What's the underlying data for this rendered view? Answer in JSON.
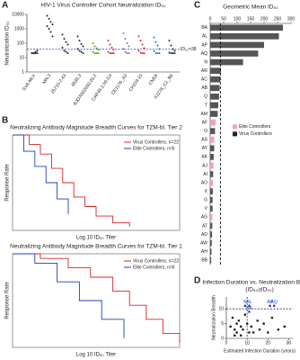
{
  "chart_data": [
    {
      "type": "dot",
      "panel": "A",
      "title": "HIV-1 Virus Controller Cohort Neutralization ID₅₀",
      "ylabel": "Neutralization ID₅₀",
      "log_y": true,
      "ylim": [
        1,
        10000
      ],
      "yticks": [
        1,
        10,
        100,
        1000,
        10000
      ],
      "categories": [
        "SVA-MLV",
        "MN.3",
        "25710-2.43",
        "6535.3",
        "BJOX002000.03.2",
        "CAP45.2.00.G3",
        "CE1176_A3",
        "CH119.10",
        "CNE8",
        "X2278_C2_B6"
      ],
      "colors": [
        "#222222",
        "#222222",
        "#222222",
        "#222222",
        "#5aa02c",
        "#d62728",
        "#9467bd",
        "#d62728",
        "#1f77b4",
        "#222222"
      ],
      "values": [
        [
          20,
          20,
          20,
          20,
          20,
          20,
          25,
          30
        ],
        [
          8000,
          5000,
          3000,
          2000,
          1500,
          1000,
          600,
          300
        ],
        [
          400,
          200,
          120,
          80,
          50,
          30,
          25,
          20
        ],
        [
          300,
          150,
          90,
          60,
          40,
          30,
          25,
          20
        ],
        [
          100,
          60,
          45,
          35,
          25,
          20,
          20,
          20
        ],
        [
          150,
          80,
          50,
          35,
          25,
          20,
          20,
          20
        ],
        [
          500,
          200,
          100,
          60,
          40,
          25,
          20,
          20
        ],
        [
          300,
          150,
          80,
          45,
          30,
          22,
          20,
          20
        ],
        [
          250,
          120,
          70,
          40,
          28,
          20,
          20,
          20
        ],
        [
          150,
          70,
          40,
          30,
          22,
          20,
          20,
          20
        ]
      ],
      "threshold": 38,
      "threshold_label": "ID₅₀=38"
    },
    {
      "type": "step",
      "panel": "B",
      "title": "Neutralizing Antibody Magnitude Breadth Curves for TZM-bl. Tier 2",
      "ylabel": "Response Rate",
      "xlabel": "Log 10 ID₅₀ Titer",
      "xlim": [
        1,
        4
      ],
      "ylim": [
        0,
        1
      ],
      "series": [
        {
          "name": "Virus Controllers, n=22",
          "color": "#d62728",
          "x": [
            1,
            1.3,
            1.5,
            1.7,
            1.9,
            2.1,
            2.3,
            2.5,
            2.8,
            3.1
          ],
          "values": [
            1,
            0.9,
            0.8,
            0.65,
            0.5,
            0.35,
            0.25,
            0.15,
            0.08,
            0.04
          ]
        },
        {
          "name": "Elite Controllers, n=6",
          "color": "#1f3fbf",
          "x": [
            1,
            1.2,
            1.4,
            1.6,
            1.8,
            2.0
          ],
          "values": [
            1,
            0.83,
            0.67,
            0.5,
            0.33,
            0.17
          ]
        }
      ]
    },
    {
      "type": "step",
      "title": "Neutralizing Antibody Magnitude Breadth Curves for TZM-bl. Tier 1",
      "ylabel": "Response Rate",
      "xlabel": "Log 10 ID₅₀ Titer",
      "xlim": [
        1,
        4
      ],
      "ylim": [
        0,
        1
      ],
      "series": [
        {
          "name": "Virus Controllers, n=22",
          "color": "#d62728",
          "x": [
            1,
            1.5,
            2,
            2.4,
            2.8,
            3.1,
            3.4,
            3.7,
            4
          ],
          "values": [
            1,
            0.95,
            0.85,
            0.75,
            0.6,
            0.45,
            0.3,
            0.15,
            0.05
          ]
        },
        {
          "name": "Elite Controllers, n=6",
          "color": "#1f3fbf",
          "x": [
            1,
            1.4,
            1.8,
            2.2,
            2.6,
            3.0
          ],
          "values": [
            1,
            0.9,
            0.7,
            0.5,
            0.3,
            0.1
          ]
        }
      ]
    },
    {
      "type": "hbar",
      "panel": "C",
      "title": "Geometric Mean ID₅₀",
      "xlim": [
        0,
        300
      ],
      "xticks": [
        0,
        50,
        100,
        150,
        200,
        250,
        300
      ],
      "categories": [
        "BA",
        "AL",
        "AP",
        "AQ",
        "N",
        "AR",
        "AC",
        "AB",
        "Q",
        "T",
        "AM",
        "AF",
        "O",
        "AS",
        "AY",
        "AK",
        "AJ",
        "AI",
        "AO",
        "X",
        "G",
        "V",
        "AG",
        "AT",
        "AD",
        "AW",
        "AH",
        "BB"
      ],
      "values": [
        270,
        255,
        200,
        178,
        122,
        40,
        38,
        35,
        33,
        30,
        28,
        20,
        18,
        15,
        15,
        13,
        12,
        11,
        10,
        10,
        9,
        9,
        8,
        8,
        7,
        6,
        5,
        4
      ],
      "colors": [
        "#555",
        "#555",
        "#555",
        "#555",
        "#555",
        "#555",
        "#555",
        "#555",
        "#555",
        "#555",
        "#555",
        "#f4a0b5",
        "#555",
        "#f4a0b5",
        "#555",
        "#555",
        "#f4a0b5",
        "#555",
        "#f4a0b5",
        "#555",
        "#555",
        "#555",
        "#f4a0b5",
        "#555",
        "#555",
        "#555",
        "#555",
        "#555"
      ],
      "reference_line": 38,
      "legend": [
        {
          "name": "Elite Controllers",
          "color": "#f4a0b5"
        },
        {
          "name": "Virus Controllers",
          "color": "#222222"
        }
      ]
    },
    {
      "type": "scatter",
      "panel": "D",
      "title": "Infection Duration vs. Neutralization Breadth",
      "subtitle": "(ID₅₀≥ID₅₀)",
      "xlabel": "Estimated Infection Duration (years)",
      "ylabel": "Neutralization Breadth",
      "xlim": [
        0,
        32
      ],
      "ylim": [
        0,
        14
      ],
      "xticks": [
        0,
        10,
        20,
        30
      ],
      "yticks": [
        0,
        5,
        10
      ],
      "reference_x": 10,
      "reference_y": 10,
      "x": [
        9,
        11,
        11,
        21,
        23,
        2,
        3,
        4,
        5,
        5,
        6,
        7,
        8,
        9,
        10,
        12,
        13,
        15,
        16,
        18,
        20,
        22,
        25,
        28,
        4,
        7,
        11
      ],
      "y": [
        11,
        11,
        9,
        11,
        11,
        4,
        7,
        3,
        5,
        2,
        6,
        4,
        3,
        8,
        5,
        4,
        2,
        6,
        3,
        5,
        2,
        7,
        3,
        4,
        1,
        1,
        2
      ],
      "point_labels": [
        "N",
        "AL",
        "BA",
        "AP",
        "AQ",
        null,
        null,
        null,
        null,
        null,
        null,
        null,
        null,
        null,
        null,
        null,
        null,
        null,
        null,
        null,
        null,
        null,
        null,
        null,
        null,
        null,
        null
      ]
    }
  ]
}
